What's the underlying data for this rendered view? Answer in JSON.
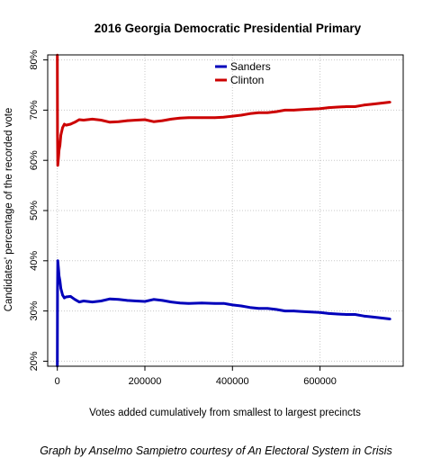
{
  "chart_data": {
    "type": "line",
    "title": "2016 Georgia Democratic Presidential Primary",
    "xlabel": "Votes added cumulatively from smallest to largest precincts",
    "ylabel": "Candidates' percentage of the recorded vote",
    "xlim": [
      -22000,
      790000
    ],
    "ylim": [
      19,
      81
    ],
    "x_ticks": [
      0,
      200000,
      400000,
      600000
    ],
    "x_tick_labels": [
      "0",
      "200000",
      "400000",
      "600000"
    ],
    "y_ticks": [
      20,
      30,
      40,
      50,
      60,
      70,
      80
    ],
    "y_tick_labels": [
      "20%",
      "30%",
      "40%",
      "50%",
      "60%",
      "70%",
      "80%"
    ],
    "grid": true,
    "legend_position": "top-center",
    "colors": {
      "sanders": "#0000bb",
      "clinton": "#cc0000"
    },
    "series": [
      {
        "name": "Sanders",
        "color": "#0000bb",
        "x": [
          0,
          500,
          1000,
          2000,
          3000,
          4000,
          6000,
          8000,
          12000,
          16000,
          20000,
          30000,
          40000,
          50000,
          60000,
          80000,
          100000,
          120000,
          140000,
          160000,
          180000,
          200000,
          220000,
          240000,
          260000,
          280000,
          300000,
          330000,
          360000,
          380000,
          400000,
          420000,
          440000,
          460000,
          480000,
          500000,
          520000,
          540000,
          560000,
          580000,
          600000,
          620000,
          640000,
          660000,
          680000,
          700000,
          720000,
          740000,
          760000
        ],
        "y": [
          19,
          34,
          40,
          39,
          38,
          37,
          36,
          34.5,
          33.2,
          32.6,
          32.8,
          32.9,
          32.3,
          31.8,
          32.0,
          31.8,
          32.0,
          32.4,
          32.3,
          32.1,
          32.0,
          31.9,
          32.3,
          32.1,
          31.8,
          31.6,
          31.5,
          31.6,
          31.5,
          31.5,
          31.2,
          31.0,
          30.7,
          30.5,
          30.5,
          30.3,
          30.0,
          30.0,
          29.9,
          29.8,
          29.7,
          29.5,
          29.4,
          29.3,
          29.3,
          29.0,
          28.8,
          28.6,
          28.4
        ]
      },
      {
        "name": "Clinton",
        "color": "#cc0000",
        "x": [
          0,
          500,
          1000,
          2000,
          3000,
          4000,
          6000,
          8000,
          12000,
          16000,
          20000,
          30000,
          40000,
          50000,
          60000,
          80000,
          100000,
          120000,
          140000,
          160000,
          180000,
          200000,
          220000,
          240000,
          260000,
          280000,
          300000,
          330000,
          360000,
          380000,
          400000,
          420000,
          440000,
          460000,
          480000,
          500000,
          520000,
          540000,
          560000,
          580000,
          600000,
          620000,
          640000,
          660000,
          680000,
          700000,
          720000,
          740000,
          760000
        ],
        "y": [
          81,
          65,
          59,
          60,
          61,
          62,
          63,
          65,
          66.5,
          67.2,
          67.0,
          67.2,
          67.6,
          68.1,
          68.0,
          68.2,
          68.0,
          67.6,
          67.7,
          67.9,
          68.0,
          68.1,
          67.7,
          67.9,
          68.2,
          68.4,
          68.5,
          68.5,
          68.5,
          68.6,
          68.8,
          69.0,
          69.3,
          69.5,
          69.5,
          69.7,
          70.0,
          70.0,
          70.1,
          70.2,
          70.3,
          70.5,
          70.6,
          70.7,
          70.7,
          71.0,
          71.2,
          71.4,
          71.6
        ]
      }
    ],
    "caption": "Graph by Anselmo Sampietro courtesy of An Electoral System in Crisis"
  }
}
